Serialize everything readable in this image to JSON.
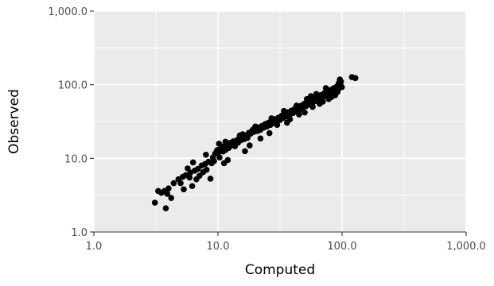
{
  "chart_data": {
    "type": "scatter",
    "title": "",
    "xlabel": "Computed",
    "ylabel": "Observed",
    "x_scale": "log10",
    "y_scale": "log10",
    "xlim": [
      1,
      1000
    ],
    "ylim": [
      1,
      1000
    ],
    "x_ticks": [
      1,
      10,
      100,
      1000
    ],
    "y_ticks": [
      1,
      10,
      100,
      1000
    ],
    "x_tick_labels": [
      "1.0",
      "10.0",
      "100.0",
      "1,000.0"
    ],
    "y_tick_labels": [
      "1.0",
      "10.0",
      "100.0",
      "1,000.0"
    ],
    "grid": true,
    "legend": "none",
    "colors": {
      "panel": "#ebebeb",
      "grid": "#ffffff",
      "point": "#000000",
      "tick": "#4d4d4d"
    },
    "points": [
      [
        3.1,
        2.5
      ],
      [
        3.3,
        3.6
      ],
      [
        3.5,
        3.4
      ],
      [
        3.7,
        3.6
      ],
      [
        3.8,
        2.1
      ],
      [
        3.9,
        3.3
      ],
      [
        4.0,
        3.9
      ],
      [
        4.2,
        2.9
      ],
      [
        4.4,
        4.6
      ],
      [
        4.8,
        5.2
      ],
      [
        5.0,
        4.6
      ],
      [
        5.2,
        5.6
      ],
      [
        5.3,
        3.8
      ],
      [
        5.5,
        5.9
      ],
      [
        5.7,
        7.3
      ],
      [
        5.9,
        5.5
      ],
      [
        6.0,
        6.4
      ],
      [
        6.2,
        4.2
      ],
      [
        6.5,
        6.8
      ],
      [
        6.7,
        5.2
      ],
      [
        6.9,
        7.2
      ],
      [
        7.1,
        5.8
      ],
      [
        7.4,
        8.0
      ],
      [
        7.6,
        6.5
      ],
      [
        7.9,
        8.4
      ],
      [
        8.1,
        7.0
      ],
      [
        8.4,
        9.0
      ],
      [
        8.7,
        5.3
      ],
      [
        8.9,
        8.6
      ],
      [
        9.1,
        10.3
      ],
      [
        9.3,
        9.2
      ],
      [
        9.5,
        11.6
      ],
      [
        9.8,
        12.7
      ],
      [
        9.9,
        13.0
      ],
      [
        10.1,
        12.1
      ],
      [
        10.2,
        15.8
      ],
      [
        10.3,
        10.3
      ],
      [
        10.6,
        13.6
      ],
      [
        10.8,
        14.5
      ],
      [
        11.0,
        12.4
      ],
      [
        11.2,
        8.6
      ],
      [
        11.5,
        13.0
      ],
      [
        11.8,
        14.8
      ],
      [
        12.2,
        13.8
      ],
      [
        12.5,
        16.2
      ],
      [
        12.9,
        15.1
      ],
      [
        13.3,
        17.0
      ],
      [
        13.7,
        14.6
      ],
      [
        14.1,
        17.5
      ],
      [
        14.5,
        16.3
      ],
      [
        14.9,
        19.2
      ],
      [
        15.3,
        17.6
      ],
      [
        15.8,
        21.2
      ],
      [
        16.3,
        18.3
      ],
      [
        16.8,
        20.6
      ],
      [
        17.3,
        19.0
      ],
      [
        17.8,
        22.3
      ],
      [
        18.4,
        21.7
      ],
      [
        19.0,
        24.3
      ],
      [
        19.6,
        23.0
      ],
      [
        20.2,
        25.7
      ],
      [
        20.8,
        23.5
      ],
      [
        21.4,
        26.4
      ],
      [
        22.0,
        24.5
      ],
      [
        22.7,
        27.6
      ],
      [
        23.4,
        26.2
      ],
      [
        24.1,
        29.3
      ],
      [
        24.8,
        27.1
      ],
      [
        25.6,
        30.5
      ],
      [
        26.4,
        28.4
      ],
      [
        27.2,
        32.4
      ],
      [
        28.0,
        30.1
      ],
      [
        28.9,
        34.0
      ],
      [
        29.8,
        31.7
      ],
      [
        30.7,
        35.7
      ],
      [
        31.6,
        33.2
      ],
      [
        32.6,
        37.9
      ],
      [
        33.6,
        35.4
      ],
      [
        34.6,
        40.0
      ],
      [
        35.7,
        37.3
      ],
      [
        36.8,
        42.3
      ],
      [
        37.9,
        39.2
      ],
      [
        39.1,
        44.5
      ],
      [
        40.3,
        41.3
      ],
      [
        41.5,
        47.0
      ],
      [
        42.8,
        43.6
      ],
      [
        44.1,
        49.3
      ],
      [
        45.5,
        46.2
      ],
      [
        46.9,
        52.1
      ],
      [
        48.3,
        48.7
      ],
      [
        49.8,
        55.3
      ],
      [
        51.3,
        51.2
      ],
      [
        52.9,
        58.2
      ],
      [
        54.5,
        54.0
      ],
      [
        56.2,
        61.5
      ],
      [
        57.9,
        57.1
      ],
      [
        59.7,
        64.8
      ],
      [
        61.5,
        60.2
      ],
      [
        63.4,
        68.4
      ],
      [
        65.3,
        63.5
      ],
      [
        67.3,
        72.2
      ],
      [
        69.4,
        67.1
      ],
      [
        71.5,
        76.3
      ],
      [
        73.7,
        70.8
      ],
      [
        76.0,
        80.6
      ],
      [
        78.3,
        74.7
      ],
      [
        80.7,
        85.1
      ],
      [
        83.2,
        79.0
      ],
      [
        85.7,
        90.0
      ],
      [
        88.3,
        83.4
      ],
      [
        91.0,
        95.2
      ],
      [
        93.8,
        88.1
      ],
      [
        96.7,
        100.5
      ],
      [
        99.7,
        92.9
      ],
      [
        96.0,
        118.0
      ],
      [
        98.0,
        110.0
      ],
      [
        120.0,
        127.0
      ],
      [
        128.0,
        123.0
      ],
      [
        16.5,
        12.5
      ],
      [
        22.0,
        18.6
      ],
      [
        30.0,
        28.5
      ],
      [
        38.0,
        34.0
      ],
      [
        45.0,
        39.5
      ],
      [
        58.0,
        50.0
      ],
      [
        70.0,
        59.0
      ],
      [
        82.0,
        68.0
      ],
      [
        92.0,
        80.0
      ],
      [
        62.0,
        75.0
      ],
      [
        52.0,
        64.0
      ],
      [
        43.0,
        52.0
      ],
      [
        34.0,
        44.0
      ],
      [
        27.0,
        35.0
      ],
      [
        20.0,
        27.0
      ],
      [
        15.0,
        20.5
      ],
      [
        11.5,
        16.8
      ],
      [
        8.0,
        11.2
      ],
      [
        6.3,
        8.8
      ],
      [
        12.0,
        9.5
      ],
      [
        18.0,
        15.0
      ],
      [
        26.0,
        22.0
      ],
      [
        36.0,
        30.5
      ],
      [
        50.0,
        42.0
      ],
      [
        66.0,
        55.0
      ],
      [
        78.0,
        64.0
      ],
      [
        88.0,
        72.0
      ],
      [
        94.0,
        105.0
      ],
      [
        74.0,
        90.0
      ],
      [
        56.0,
        70.0
      ]
    ]
  }
}
